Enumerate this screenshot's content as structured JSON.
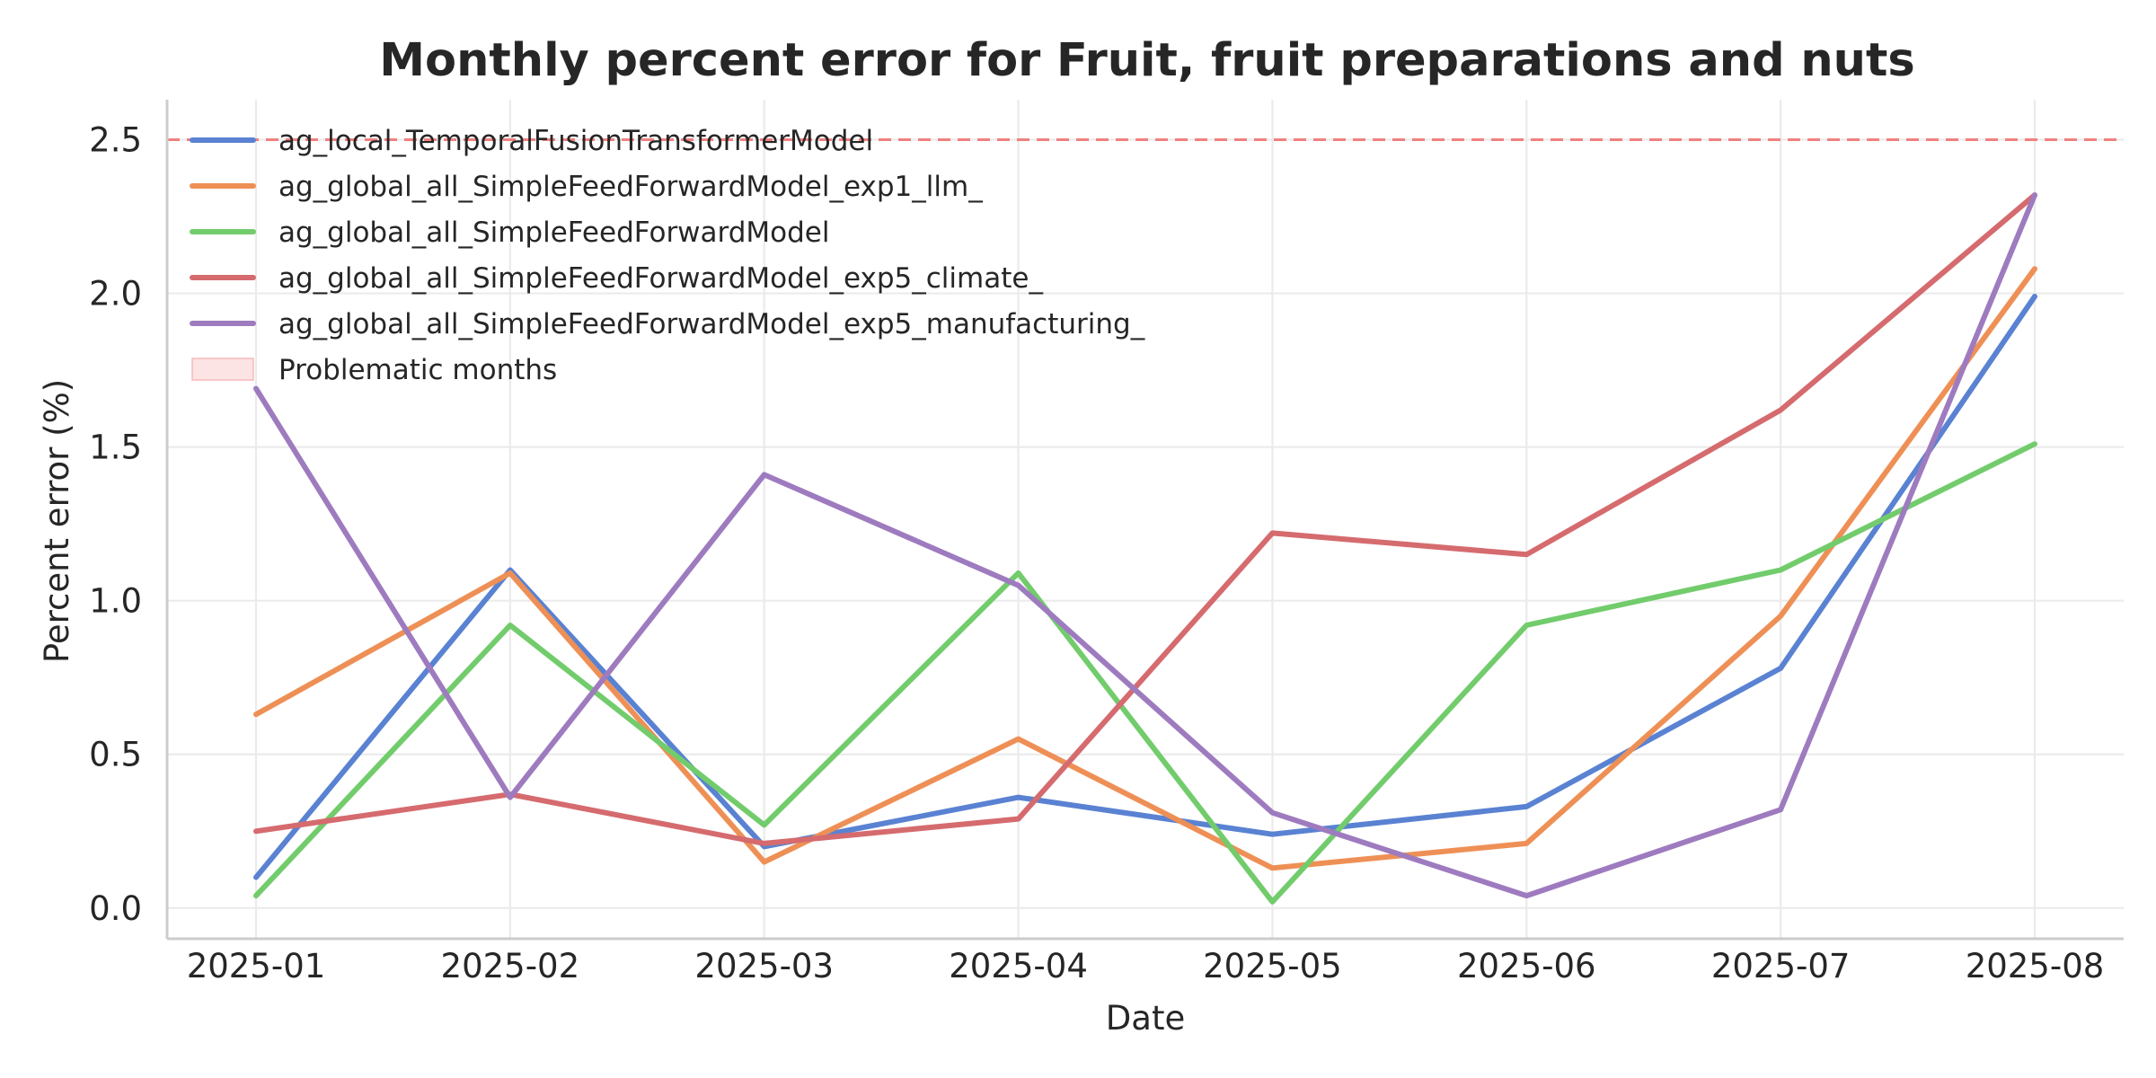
{
  "chart_data": {
    "type": "line",
    "title": "Monthly percent error for Fruit, fruit preparations and nuts",
    "xlabel": "Date",
    "ylabel": "Percent error (%)",
    "x": [
      "2025-01",
      "2025-02",
      "2025-03",
      "2025-04",
      "2025-05",
      "2025-06",
      "2025-07",
      "2025-08"
    ],
    "ylim": [
      -0.1,
      2.63
    ],
    "yticks": [
      "0.0",
      "0.5",
      "1.0",
      "1.5",
      "2.0",
      "2.5"
    ],
    "grid": true,
    "legend_position": "upper left",
    "threshold": {
      "value": 2.5,
      "color": "#f08080"
    },
    "series": [
      {
        "name": "ag_local_TemporalFusionTransformerModel",
        "color": "#5a82d2",
        "values": [
          0.1,
          1.1,
          0.2,
          0.36,
          0.24,
          0.33,
          0.78,
          1.99
        ]
      },
      {
        "name": "ag_global_all_SimpleFeedForwardModel_exp1_llm_",
        "color": "#ee9056",
        "values": [
          0.63,
          1.09,
          0.15,
          0.55,
          0.13,
          0.21,
          0.95,
          2.08
        ]
      },
      {
        "name": "ag_global_all_SimpleFeedForwardModel",
        "color": "#72cc6c",
        "values": [
          0.04,
          0.92,
          0.27,
          1.09,
          0.02,
          0.92,
          1.1,
          1.51
        ]
      },
      {
        "name": "ag_global_all_SimpleFeedForwardModel_exp5_climate_",
        "color": "#d56b6e",
        "values": [
          0.25,
          0.37,
          0.21,
          0.29,
          1.22,
          1.15,
          1.62,
          2.32
        ]
      },
      {
        "name": "ag_global_all_SimpleFeedForwardModel_exp5_manufacturing_",
        "color": "#9e7bbf",
        "values": [
          1.69,
          0.36,
          1.41,
          1.05,
          0.31,
          0.04,
          0.32,
          2.32
        ]
      }
    ],
    "legend_extra": {
      "name": "Problematic months",
      "fill": "#fde4e4",
      "edge": "#f7b9b9"
    }
  }
}
